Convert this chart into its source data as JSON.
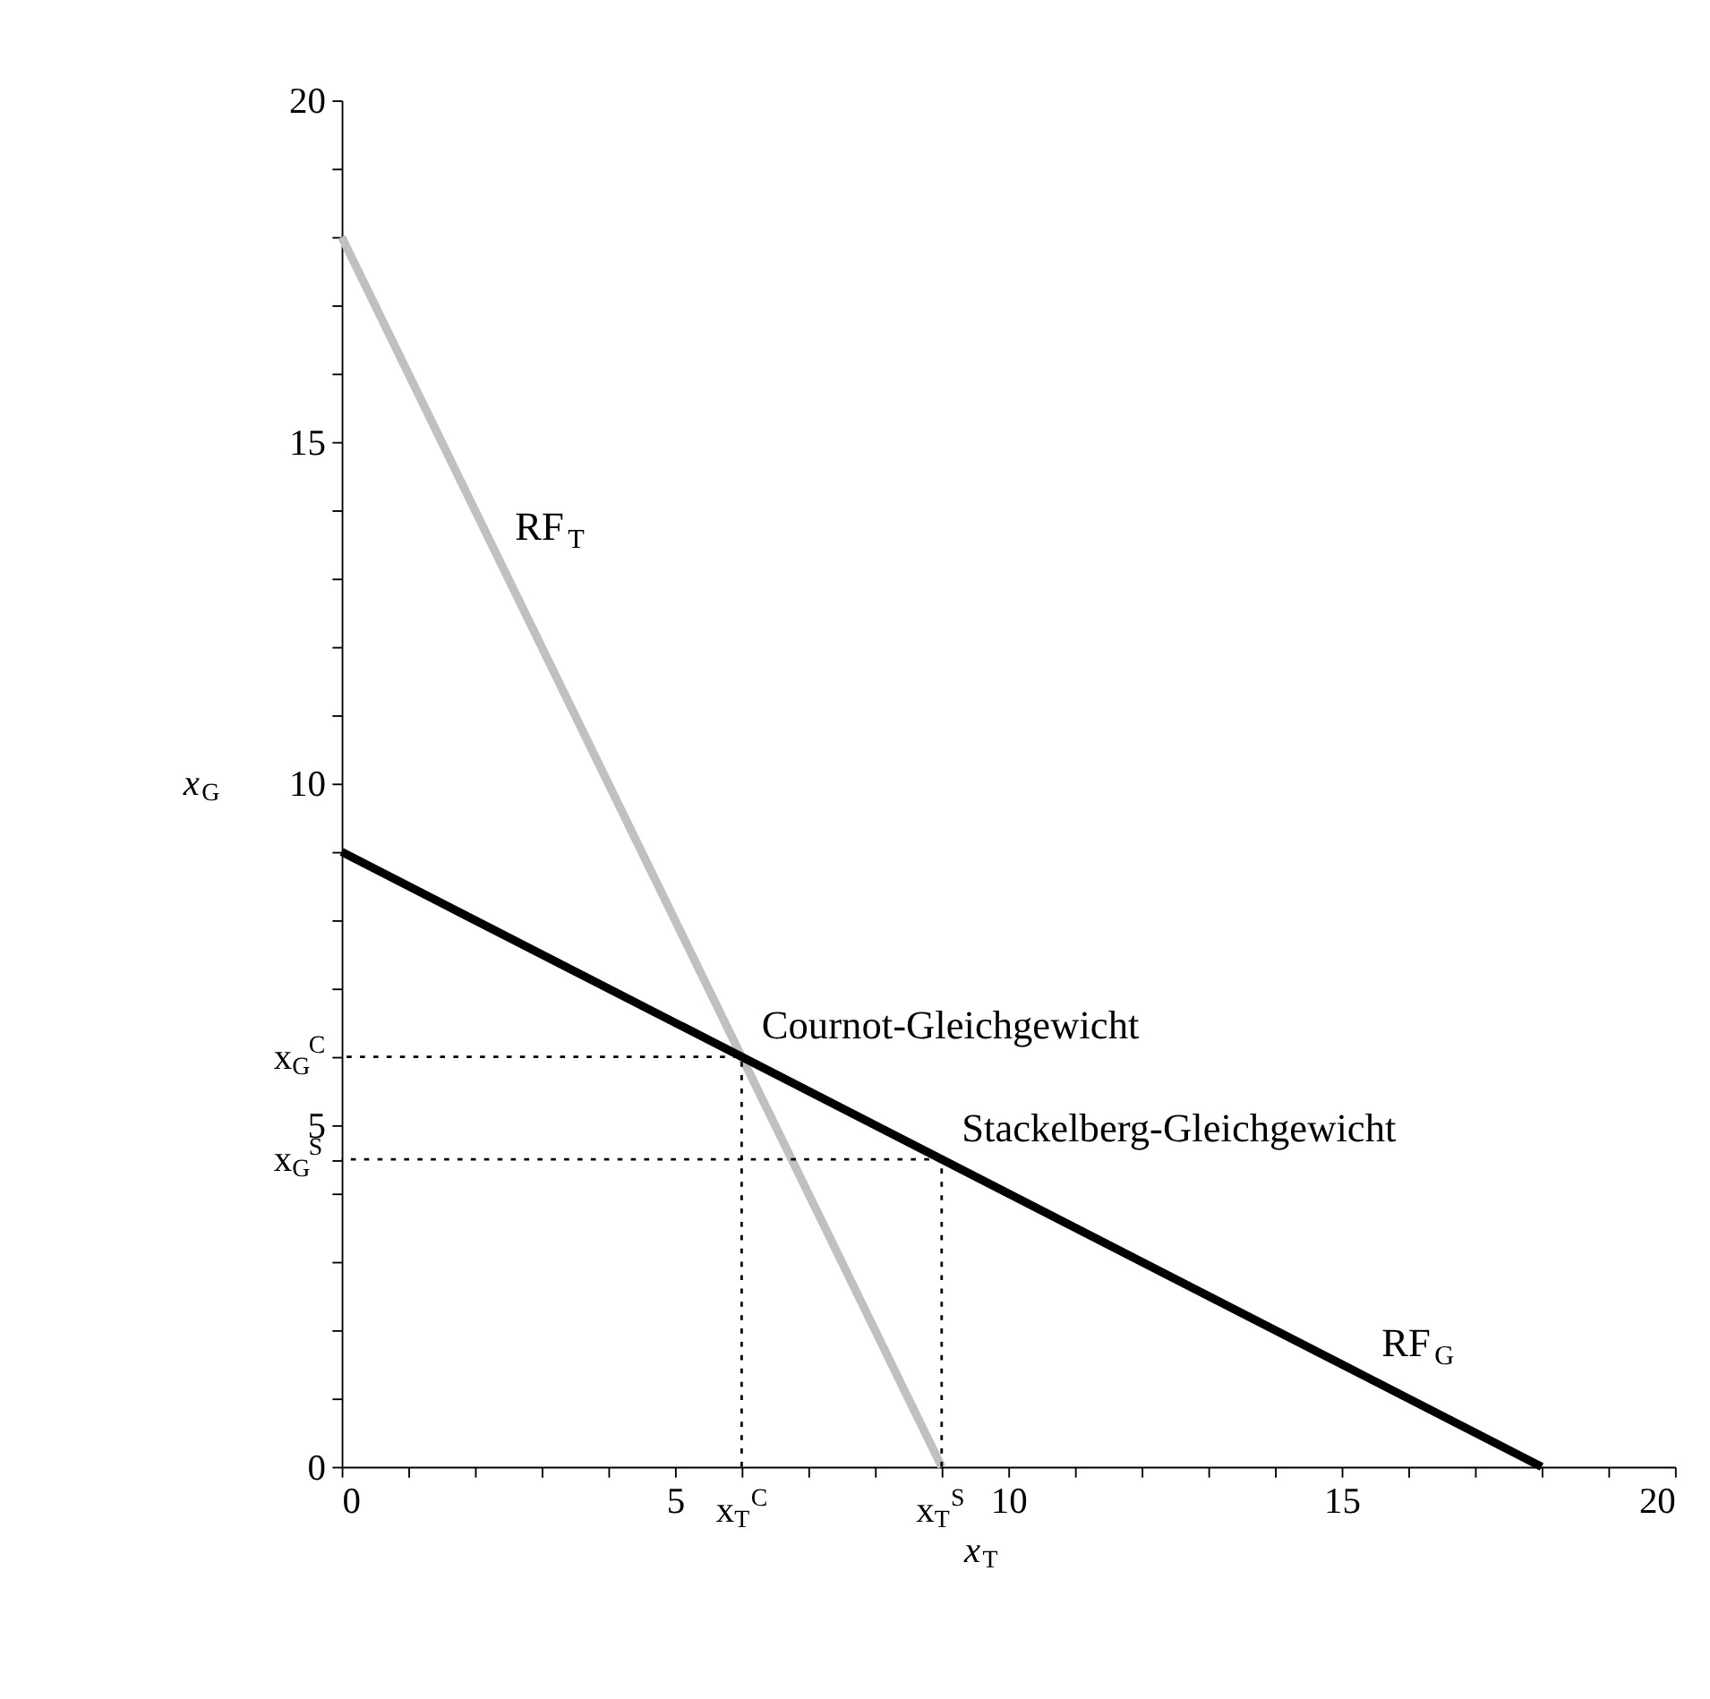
{
  "chart_data": {
    "type": "line",
    "xlabel": "x$_{T}$",
    "ylabel": "x$_{G}$",
    "xlim": [
      0,
      20
    ],
    "ylim": [
      0,
      20
    ],
    "xticks": [
      0,
      {
        "value": 1,
        "label": null
      },
      {
        "value": 2,
        "label": null
      },
      {
        "value": 3,
        "label": null
      },
      {
        "value": 4,
        "label": null
      },
      5,
      {
        "value": 6,
        "label": "x$_{T}$$^{C}$"
      },
      {
        "value": 7,
        "label": null
      },
      {
        "value": 8,
        "label": null
      },
      {
        "value": 9,
        "label": "x$_{T}$$^{S}$"
      },
      10,
      {
        "value": 11,
        "label": null
      },
      {
        "value": 12,
        "label": null
      },
      {
        "value": 13,
        "label": null
      },
      {
        "value": 14,
        "label": null
      },
      15,
      {
        "value": 16,
        "label": null
      },
      {
        "value": 17,
        "label": null
      },
      {
        "value": 18,
        "label": null
      },
      {
        "value": 19,
        "label": null
      },
      20
    ],
    "yticks": [
      0,
      {
        "value": 1,
        "label": null
      },
      {
        "value": 2,
        "label": null
      },
      {
        "value": 3,
        "label": null
      },
      {
        "value": 4,
        "label": null
      },
      {
        "value": 4.5,
        "label": "x$_{G}$$^{S}$"
      },
      5,
      {
        "value": 6,
        "label": "x$_{G}$$^{C}$"
      },
      {
        "value": 7,
        "label": null
      },
      {
        "value": 8,
        "label": null
      },
      {
        "value": 9,
        "label": null
      },
      10,
      {
        "value": 11,
        "label": null
      },
      {
        "value": 12,
        "label": null
      },
      {
        "value": 13,
        "label": null
      },
      {
        "value": 14,
        "label": null
      },
      15,
      {
        "value": 16,
        "label": null
      },
      {
        "value": 17,
        "label": null
      },
      {
        "value": 18,
        "label": null
      },
      {
        "value": 19,
        "label": null
      },
      20
    ],
    "series": [
      {
        "color": "#c0c0c0",
        "x": [
          0,
          9
        ],
        "values": [
          18,
          0
        ]
      },
      {
        "color": "#000000",
        "x": [
          0,
          18
        ],
        "values": [
          9,
          0
        ]
      },
      {
        "color": "#000000",
        "line_style": "dotted",
        "x": [
          6,
          6,
          0
        ],
        "values": [
          0,
          6,
          6
        ]
      },
      {
        "color": "#000000",
        "line_style": "dotted",
        "x": [
          9,
          9,
          0
        ],
        "values": [
          0,
          4.5,
          4.5
        ]
      }
    ],
    "annotations": [
      {
        "text": "RF$_{T}$",
        "x": 2.3,
        "y": 13.3
      },
      {
        "text": "RF$_{G}$",
        "x": 15.3,
        "y": 1.35
      },
      {
        "text": "Cournot-Gleichgewicht",
        "x": 6,
        "y": 6
      },
      {
        "text": "Stackelberg-Gleichgewicht",
        "x": 9,
        "y": 4.5
      }
    ],
    "grid": false
  }
}
